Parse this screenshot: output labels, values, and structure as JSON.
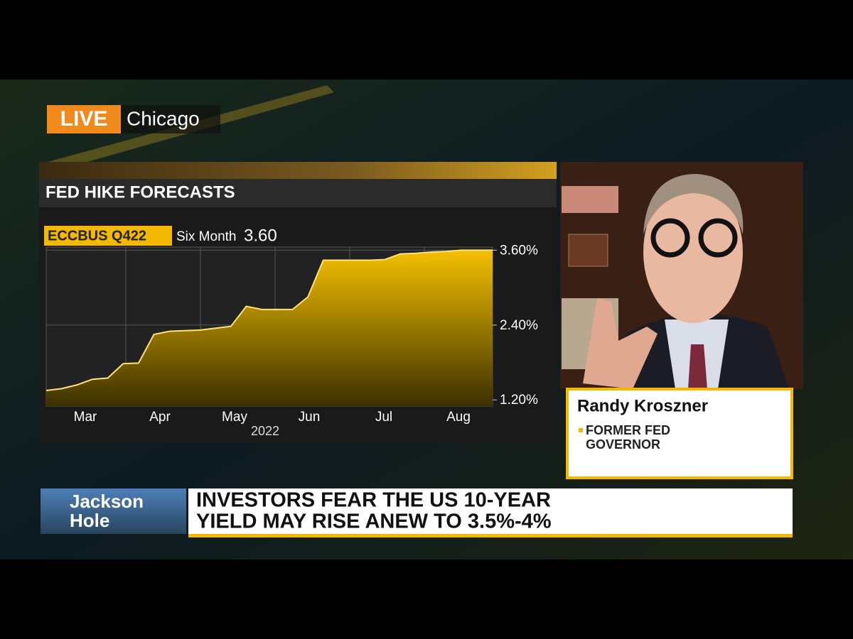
{
  "live": "LIVE",
  "location": "Chicago",
  "guest": {
    "name": "Randy Kroszner",
    "title_lines": [
      "FORMER FED",
      "GOVERNOR"
    ]
  },
  "segment": [
    "Jackson",
    "Hole"
  ],
  "headline": [
    "INVESTORS FEAR THE US 10-YEAR",
    "YIELD MAY RISE ANEW TO 3.5%-4%"
  ],
  "chart_data": {
    "type": "area",
    "title": "FED HIKE FORECASTS",
    "ticker": "ECCBUS Q422",
    "ticker_label": "Six Month",
    "ticker_value": "3.60",
    "months": [
      "Mar",
      "Apr",
      "May",
      "Jun",
      "Jul",
      "Aug"
    ],
    "year": "2022",
    "color": "#f2b900",
    "values": [
      1.35,
      1.38,
      1.44,
      1.53,
      1.55,
      1.78,
      1.79,
      2.25,
      2.3,
      2.31,
      2.32,
      2.35,
      2.38,
      2.7,
      2.65,
      2.65,
      2.65,
      2.85,
      3.44,
      3.44,
      3.44,
      3.44,
      3.45,
      3.54,
      3.55,
      3.57,
      3.58,
      3.6,
      3.6,
      3.6
    ],
    "ylim": [
      1.1,
      3.65
    ],
    "yticks": [
      {
        "value": 1.2,
        "label": "1.20%"
      },
      {
        "value": 2.4,
        "label": "2.40%"
      },
      {
        "value": 3.6,
        "label": "3.60%"
      }
    ],
    "grid": true
  }
}
